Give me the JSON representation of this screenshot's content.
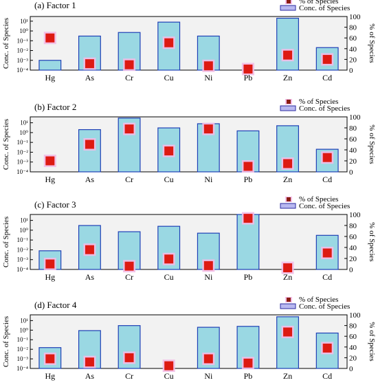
{
  "chart_data": [
    {
      "type": "bar",
      "title": "(a) Factor 1",
      "categories": [
        "Hg",
        "As",
        "Cr",
        "Cu",
        "Ni",
        "Pb",
        "Zn",
        "Cd"
      ],
      "ylabel": "Conc. of Species",
      "y2label": "% of Species",
      "yscale": "log",
      "ylim": [
        0.0001,
        30
      ],
      "y_ticks": [
        "10⁻⁴",
        "10⁻³",
        "10⁻²",
        "10⁻¹",
        "10⁰",
        "10¹"
      ],
      "y2lim": [
        0,
        100
      ],
      "y2_ticks": [
        "0",
        "20",
        "40",
        "60",
        "80",
        "100"
      ],
      "series": [
        {
          "name": "Conc. of Species",
          "kind": "bar",
          "values": [
            0.001,
            0.3,
            0.7,
            8,
            0.3,
            0.0001,
            20,
            0.02
          ]
        },
        {
          "name": "% of Species",
          "kind": "marker",
          "values": [
            60,
            12,
            10,
            51,
            8,
            2,
            28,
            20
          ]
        }
      ],
      "legend_position": "top-right"
    },
    {
      "type": "bar",
      "title": "(b) Factor 2",
      "categories": [
        "Hg",
        "As",
        "Cr",
        "Cu",
        "Ni",
        "Pb",
        "Zn",
        "Cd"
      ],
      "ylabel": "Conc. of Species",
      "y2label": "% of Species",
      "yscale": "log",
      "ylim": [
        0.0001,
        40
      ],
      "y_ticks": [
        "10⁻⁴",
        "10⁻³",
        "10⁻²",
        "10⁻¹",
        "10⁰",
        "10¹"
      ],
      "y2lim": [
        0,
        100
      ],
      "y2_ticks": [
        "0",
        "20",
        "40",
        "60",
        "80",
        "100"
      ],
      "series": [
        {
          "name": "Conc. of Species",
          "kind": "bar",
          "values": [
            0.0001,
            2,
            30,
            3,
            8,
            1.5,
            5,
            0.02
          ]
        },
        {
          "name": "% of Species",
          "kind": "marker",
          "values": [
            20,
            50,
            78,
            38,
            78,
            10,
            15,
            26
          ]
        }
      ],
      "legend_position": "top-right"
    },
    {
      "type": "bar",
      "title": "(c) Factor 3",
      "categories": [
        "Hg",
        "As",
        "Cr",
        "Cu",
        "Ni",
        "Pb",
        "Zn",
        "Cd"
      ],
      "ylabel": "Conc. of Species",
      "y2label": "% of Species",
      "yscale": "log",
      "ylim": [
        0.0001,
        40
      ],
      "y_ticks": [
        "10⁻⁴",
        "10⁻³",
        "10⁻²",
        "10⁻¹",
        "10⁰",
        "10¹"
      ],
      "y2lim": [
        0,
        100
      ],
      "y2_ticks": [
        "0",
        "20",
        "40",
        "60",
        "80",
        "100"
      ],
      "series": [
        {
          "name": "Conc. of Species",
          "kind": "bar",
          "values": [
            0.008,
            3,
            0.7,
            2.5,
            0.5,
            40,
            0.0001,
            0.3
          ]
        },
        {
          "name": "% of Species",
          "kind": "marker",
          "values": [
            10,
            36,
            6,
            19,
            7,
            93,
            3,
            30
          ]
        }
      ],
      "legend_position": "top-right"
    },
    {
      "type": "bar",
      "title": "(d) Factor 4",
      "categories": [
        "Hg",
        "As",
        "Cr",
        "Cu",
        "Ni",
        "Pb",
        "Zn",
        "Cd"
      ],
      "ylabel": "Conc. of Species",
      "y2label": "% of Species",
      "yscale": "log",
      "ylim": [
        0.0001,
        40
      ],
      "y_ticks": [
        "10⁻⁴",
        "10⁻³",
        "10⁻²",
        "10⁻¹",
        "10⁰",
        "10¹"
      ],
      "y2lim": [
        0,
        100
      ],
      "y2_ticks": [
        "0",
        "20",
        "40",
        "60",
        "80",
        "100"
      ],
      "series": [
        {
          "name": "Conc. of Species",
          "kind": "bar",
          "values": [
            0.015,
            0.9,
            3,
            0.0001,
            2,
            2.5,
            25,
            0.5
          ]
        },
        {
          "name": "% of Species",
          "kind": "marker",
          "values": [
            18,
            12,
            20,
            5,
            18,
            10,
            68,
            38
          ]
        }
      ],
      "legend_position": "top-right"
    }
  ],
  "colors": {
    "bar_fill": "#9ad8e3",
    "bar_stroke": "#1f3fb6",
    "marker_fill": "#dd1a12",
    "marker_halo": "#f3bde6",
    "plot_bg": "#f2f2f2",
    "legend_marker": "#8a1d12",
    "legend_bar_fill": "#b8b8f0",
    "legend_bar_stroke": "#2a2aa0"
  }
}
